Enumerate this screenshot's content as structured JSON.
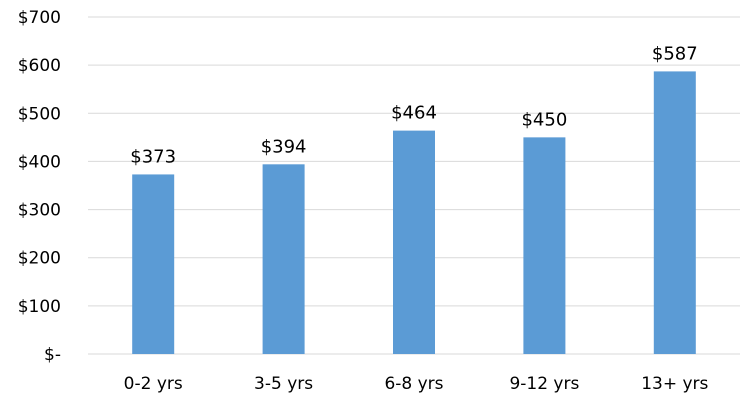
{
  "chart_data": {
    "type": "bar",
    "categories": [
      "0-2 yrs",
      "3-5 yrs",
      "6-8 yrs",
      "9-12 yrs",
      "13+ yrs"
    ],
    "values": [
      373,
      394,
      464,
      450,
      587
    ],
    "data_labels": [
      "$373",
      "$394",
      "$464",
      "$450",
      "$587"
    ],
    "title": "",
    "xlabel": "",
    "ylabel": "",
    "ylim": [
      0,
      700
    ],
    "yticks": [
      0,
      100,
      200,
      300,
      400,
      500,
      600,
      700
    ],
    "ytick_labels": [
      "$-",
      "$100",
      "$200",
      "$300",
      "$400",
      "$500",
      "$600",
      "$700"
    ],
    "grid": true,
    "legend": "none",
    "bar_color": "#5b9bd5",
    "grid_color": "#d9d9d9"
  }
}
